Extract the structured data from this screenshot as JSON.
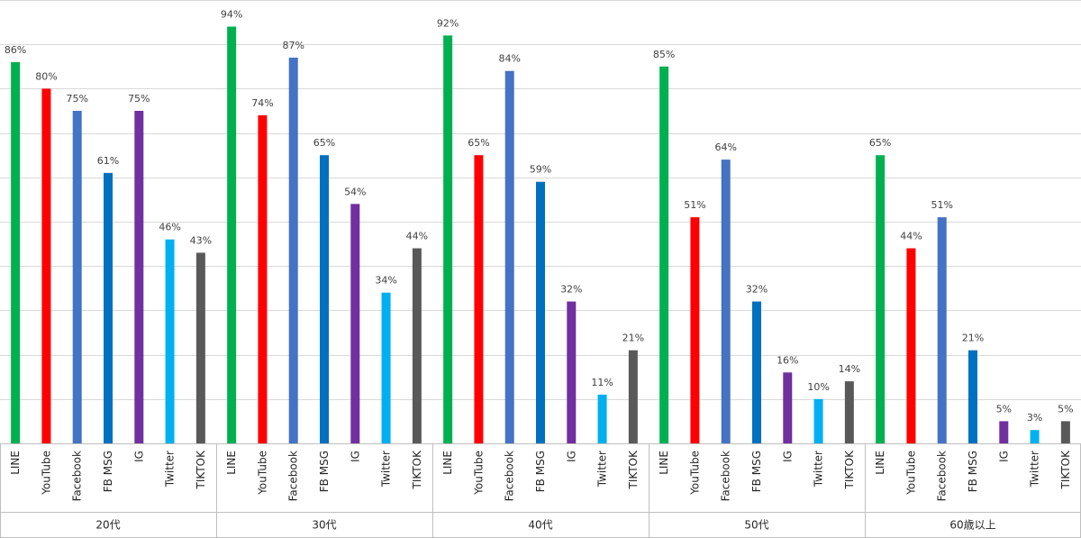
{
  "chart_data": {
    "type": "bar",
    "title": "",
    "xlabel": "",
    "ylabel": "",
    "ylim": [
      0,
      100
    ],
    "grid": true,
    "legend": "none",
    "value_suffix": "%",
    "platforms": [
      "LINE",
      "YouTube",
      "Facebook",
      "FB MSG",
      "IG",
      "Twitter",
      "TIKTOK"
    ],
    "colors": [
      "#00b050",
      "#ff0000",
      "#4472c4",
      "#0070c0",
      "#7030a0",
      "#00b0f0",
      "#595959"
    ],
    "groups": [
      {
        "name": "20代",
        "values": [
          86,
          80,
          75,
          61,
          75,
          46,
          43
        ]
      },
      {
        "name": "30代",
        "values": [
          94,
          74,
          87,
          65,
          54,
          34,
          44
        ]
      },
      {
        "name": "40代",
        "values": [
          92,
          65,
          84,
          59,
          32,
          11,
          21
        ]
      },
      {
        "name": "50代",
        "values": [
          85,
          51,
          64,
          32,
          16,
          10,
          14
        ]
      },
      {
        "name": "60歳以上",
        "values": [
          65,
          44,
          51,
          21,
          5,
          3,
          5
        ]
      }
    ]
  }
}
